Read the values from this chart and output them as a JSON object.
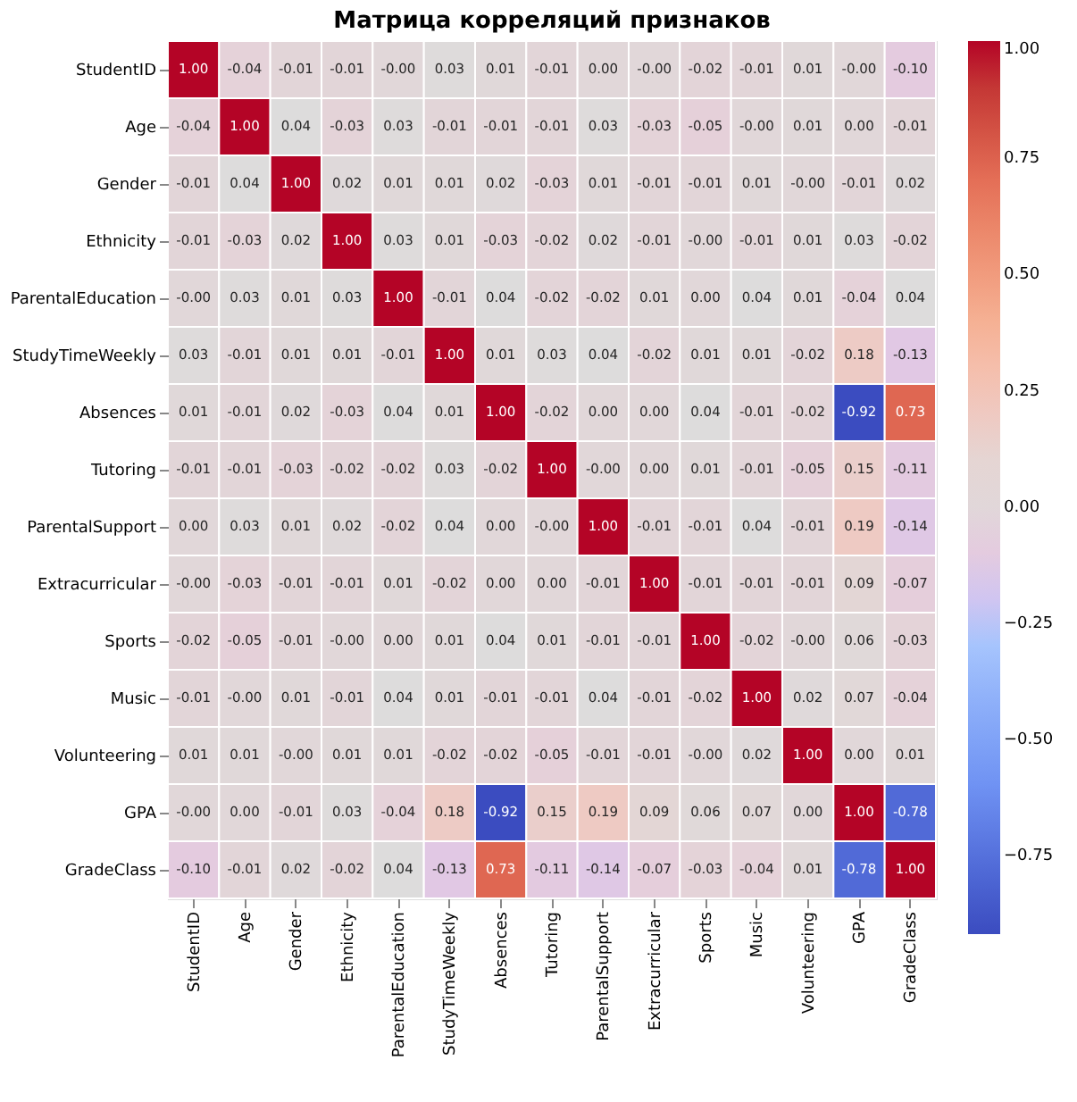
{
  "chart_data": {
    "type": "heatmap",
    "title": "Матрица корреляций признаков",
    "categories": [
      "StudentID",
      "Age",
      "Gender",
      "Ethnicity",
      "ParentalEducation",
      "StudyTimeWeekly",
      "Absences",
      "Tutoring",
      "ParentalSupport",
      "Extracurricular",
      "Sports",
      "Music",
      "Volunteering",
      "GPA",
      "GradeClass"
    ],
    "y_categories": [
      "StudentID",
      "Age",
      "Gender",
      "Ethnicity",
      "ParentalEducation",
      "StudyTimeWeekly",
      "Absences",
      "Tutoring",
      "ParentalSupport",
      "Extracurricular",
      "Sports",
      "Music",
      "Volunteering",
      "GPA",
      "GradeClass"
    ],
    "cells": [
      [
        1.0,
        -0.04,
        -0.01,
        -0.01,
        0.0,
        0.03,
        0.01,
        -0.01,
        0.0,
        0.0,
        -0.02,
        -0.01,
        0.01,
        0.0,
        -0.1
      ],
      [
        -0.04,
        1.0,
        0.04,
        -0.03,
        0.03,
        -0.01,
        -0.01,
        -0.01,
        0.03,
        -0.03,
        -0.05,
        0.0,
        0.01,
        0.0,
        -0.01
      ],
      [
        -0.01,
        0.04,
        1.0,
        0.02,
        0.01,
        0.01,
        0.02,
        -0.03,
        0.01,
        -0.01,
        -0.01,
        0.01,
        0.0,
        -0.01,
        0.02
      ],
      [
        -0.01,
        -0.03,
        0.02,
        1.0,
        0.03,
        0.01,
        -0.03,
        -0.02,
        0.02,
        -0.01,
        0.0,
        -0.01,
        0.01,
        0.03,
        -0.02
      ],
      [
        0.0,
        0.03,
        0.01,
        0.03,
        1.0,
        -0.01,
        0.04,
        -0.02,
        -0.02,
        0.01,
        0.0,
        0.04,
        0.01,
        -0.04,
        0.04
      ],
      [
        0.03,
        -0.01,
        0.01,
        0.01,
        -0.01,
        1.0,
        0.01,
        0.03,
        0.04,
        -0.02,
        0.01,
        0.01,
        -0.02,
        0.18,
        -0.13
      ],
      [
        0.01,
        -0.01,
        0.02,
        -0.03,
        0.04,
        0.01,
        1.0,
        -0.02,
        0.0,
        0.0,
        0.04,
        -0.01,
        -0.02,
        -0.92,
        0.73
      ],
      [
        -0.01,
        -0.01,
        -0.03,
        -0.02,
        -0.02,
        0.03,
        -0.02,
        1.0,
        0.0,
        0.0,
        0.01,
        -0.01,
        -0.05,
        0.15,
        -0.11
      ],
      [
        0.0,
        0.03,
        0.01,
        0.02,
        -0.02,
        0.04,
        0.0,
        0.0,
        1.0,
        -0.01,
        -0.01,
        0.04,
        -0.01,
        0.19,
        -0.14
      ],
      [
        0.0,
        -0.03,
        -0.01,
        -0.01,
        0.01,
        -0.02,
        0.0,
        0.0,
        -0.01,
        1.0,
        -0.01,
        -0.01,
        -0.01,
        0.09,
        -0.07
      ],
      [
        -0.02,
        -0.05,
        -0.01,
        0.0,
        0.0,
        0.01,
        0.04,
        0.01,
        -0.01,
        -0.01,
        1.0,
        -0.02,
        0.0,
        0.06,
        -0.03
      ],
      [
        -0.01,
        0.0,
        0.01,
        -0.01,
        0.04,
        0.01,
        -0.01,
        -0.01,
        0.04,
        -0.01,
        -0.02,
        1.0,
        0.02,
        0.07,
        -0.04
      ],
      [
        0.01,
        0.01,
        0.0,
        0.01,
        0.01,
        -0.02,
        -0.02,
        -0.05,
        -0.01,
        -0.01,
        0.0,
        0.02,
        1.0,
        0.0,
        0.01
      ],
      [
        0.0,
        0.0,
        -0.01,
        0.03,
        -0.04,
        0.18,
        -0.92,
        0.15,
        0.19,
        0.09,
        0.06,
        0.07,
        0.0,
        1.0,
        -0.78
      ],
      [
        -0.1,
        -0.01,
        0.02,
        -0.02,
        0.04,
        -0.13,
        0.73,
        -0.11,
        -0.14,
        -0.07,
        -0.03,
        -0.04,
        0.01,
        -0.78,
        1.0
      ]
    ],
    "cell_labels": [
      [
        "1.00",
        "-0.04",
        "-0.01",
        "-0.01",
        "-0.00",
        "0.03",
        "0.01",
        "-0.01",
        "0.00",
        "-0.00",
        "-0.02",
        "-0.01",
        "0.01",
        "-0.00",
        "-0.10"
      ],
      [
        "-0.04",
        "1.00",
        "0.04",
        "-0.03",
        "0.03",
        "-0.01",
        "-0.01",
        "-0.01",
        "0.03",
        "-0.03",
        "-0.05",
        "-0.00",
        "0.01",
        "0.00",
        "-0.01"
      ],
      [
        "-0.01",
        "0.04",
        "1.00",
        "0.02",
        "0.01",
        "0.01",
        "0.02",
        "-0.03",
        "0.01",
        "-0.01",
        "-0.01",
        "0.01",
        "-0.00",
        "-0.01",
        "0.02"
      ],
      [
        "-0.01",
        "-0.03",
        "0.02",
        "1.00",
        "0.03",
        "0.01",
        "-0.03",
        "-0.02",
        "0.02",
        "-0.01",
        "-0.00",
        "-0.01",
        "0.01",
        "0.03",
        "-0.02"
      ],
      [
        "-0.00",
        "0.03",
        "0.01",
        "0.03",
        "1.00",
        "-0.01",
        "0.04",
        "-0.02",
        "-0.02",
        "0.01",
        "0.00",
        "0.04",
        "0.01",
        "-0.04",
        "0.04"
      ],
      [
        "0.03",
        "-0.01",
        "0.01",
        "0.01",
        "-0.01",
        "1.00",
        "0.01",
        "0.03",
        "0.04",
        "-0.02",
        "0.01",
        "0.01",
        "-0.02",
        "0.18",
        "-0.13"
      ],
      [
        "0.01",
        "-0.01",
        "0.02",
        "-0.03",
        "0.04",
        "0.01",
        "1.00",
        "-0.02",
        "0.00",
        "0.00",
        "0.04",
        "-0.01",
        "-0.02",
        "-0.92",
        "0.73"
      ],
      [
        "-0.01",
        "-0.01",
        "-0.03",
        "-0.02",
        "-0.02",
        "0.03",
        "-0.02",
        "1.00",
        "-0.00",
        "0.00",
        "0.01",
        "-0.01",
        "-0.05",
        "0.15",
        "-0.11"
      ],
      [
        "0.00",
        "0.03",
        "0.01",
        "0.02",
        "-0.02",
        "0.04",
        "0.00",
        "-0.00",
        "1.00",
        "-0.01",
        "-0.01",
        "0.04",
        "-0.01",
        "0.19",
        "-0.14"
      ],
      [
        "-0.00",
        "-0.03",
        "-0.01",
        "-0.01",
        "0.01",
        "-0.02",
        "0.00",
        "0.00",
        "-0.01",
        "1.00",
        "-0.01",
        "-0.01",
        "-0.01",
        "0.09",
        "-0.07"
      ],
      [
        "-0.02",
        "-0.05",
        "-0.01",
        "-0.00",
        "0.00",
        "0.01",
        "0.04",
        "0.01",
        "-0.01",
        "-0.01",
        "1.00",
        "-0.02",
        "-0.00",
        "0.06",
        "-0.03"
      ],
      [
        "-0.01",
        "-0.00",
        "0.01",
        "-0.01",
        "0.04",
        "0.01",
        "-0.01",
        "-0.01",
        "0.04",
        "-0.01",
        "-0.02",
        "1.00",
        "0.02",
        "0.07",
        "-0.04"
      ],
      [
        "0.01",
        "0.01",
        "-0.00",
        "0.01",
        "0.01",
        "-0.02",
        "-0.02",
        "-0.05",
        "-0.01",
        "-0.01",
        "-0.00",
        "0.02",
        "1.00",
        "0.00",
        "0.01"
      ],
      [
        "-0.00",
        "0.00",
        "-0.01",
        "0.03",
        "-0.04",
        "0.18",
        "-0.92",
        "0.15",
        "0.19",
        "0.09",
        "0.06",
        "0.07",
        "0.00",
        "1.00",
        "-0.78"
      ],
      [
        "-0.10",
        "-0.01",
        "0.02",
        "-0.02",
        "0.04",
        "-0.13",
        "0.73",
        "-0.11",
        "-0.14",
        "-0.07",
        "-0.03",
        "-0.04",
        "0.01",
        "-0.78",
        "1.00"
      ]
    ],
    "clim": [
      -0.92,
      1.0
    ],
    "cticks": [
      {
        "value": 1.0,
        "label": "1.00"
      },
      {
        "value": 0.75,
        "label": "0.75"
      },
      {
        "value": 0.5,
        "label": "0.50"
      },
      {
        "value": 0.25,
        "label": "0.25"
      },
      {
        "value": 0.0,
        "label": "0.00"
      },
      {
        "value": -0.25,
        "label": "−0.25"
      },
      {
        "value": -0.5,
        "label": "−0.50"
      },
      {
        "value": -0.75,
        "label": "−0.75"
      }
    ],
    "data_labels": true
  }
}
